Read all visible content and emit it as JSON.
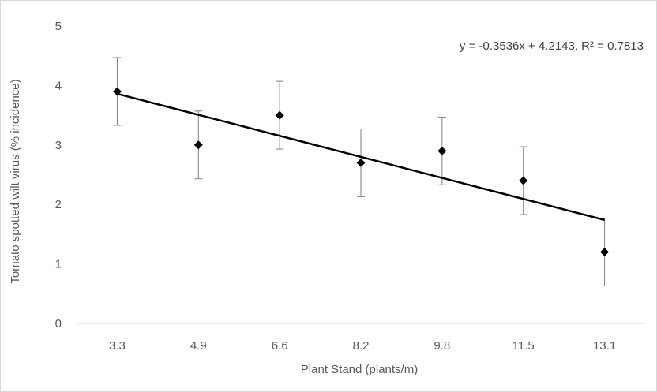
{
  "chart_data": {
    "type": "scatter",
    "xlabel": "Plant Stand (plants/m)",
    "ylabel": "Tomato spotted wilt virus (% incidence)",
    "categories": [
      "3.3",
      "4.9",
      "6.6",
      "8.2",
      "9.8",
      "11.5",
      "13.1"
    ],
    "values": [
      3.9,
      3.0,
      3.5,
      2.7,
      2.9,
      2.4,
      1.2
    ],
    "error": [
      0.57,
      0.57,
      0.57,
      0.57,
      0.57,
      0.57,
      0.57
    ],
    "ylim": [
      0,
      5
    ],
    "yticks": [
      0,
      1,
      2,
      3,
      4,
      5
    ],
    "grid": false,
    "trendline": {
      "type": "linear",
      "slope": -0.3536,
      "intercept": 4.2143,
      "label": "y = -0.3536x + 4.2143, R² = 0.7813"
    },
    "marker": "diamond",
    "marker_color": "#000000"
  }
}
